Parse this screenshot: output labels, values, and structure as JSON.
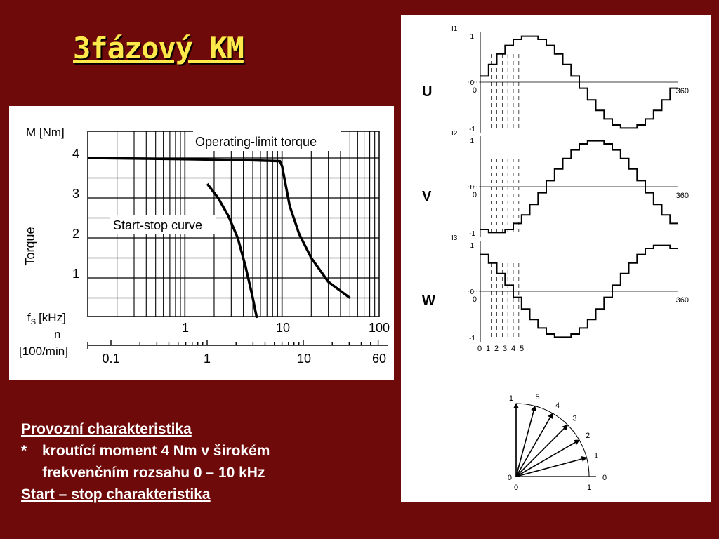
{
  "slide": {
    "title": "3fázový KM",
    "notes": {
      "heading": "Provozní charakteristika",
      "bullet_marker": "*",
      "bullet_line1": "kroutící moment 4 Nm v širokém",
      "bullet_line2": "frekvenčním rozsahu 0 – 10 kHz",
      "footer": "Start – stop charakteristika"
    }
  },
  "torque_chart": {
    "ylabel": "Torque",
    "yunit": "M [Nm]",
    "xunit_f": "f",
    "xunit_f_sub": "S",
    "xunit_f_tail": "[kHz]",
    "xunit_n": "n",
    "xunit_n_tail": "[100/min]",
    "yticks": [
      "4",
      "3",
      "2",
      "1"
    ],
    "fticks": [
      "1",
      "10",
      "100"
    ],
    "nticks": [
      "0.1",
      "1",
      "10",
      "60"
    ],
    "annotation_limit": "Operating-limit torque",
    "annotation_startstop": "Start-stop curve"
  },
  "phase_chart": {
    "phases": [
      {
        "label": "U",
        "ylabel": "I1",
        "ytop": "1",
        "yzero": "0",
        "ybottom": "-1",
        "xzero": "0",
        "xend": "360"
      },
      {
        "label": "V",
        "ylabel": "I2",
        "ytop": "1",
        "yzero": "0",
        "ybottom": "-1",
        "xzero": "0",
        "xend": "360"
      },
      {
        "label": "W",
        "ylabel": "I3",
        "ytop": "1",
        "yzero": "0",
        "ybottom": "-1",
        "xzero": "0",
        "xend": "360"
      }
    ],
    "step_ticks": [
      "0",
      "1",
      "2",
      "3",
      "4",
      "5"
    ]
  },
  "phasor": {
    "y_top": "1",
    "origin_y": "0",
    "origin_x": "0",
    "x_one": "1",
    "x_zero_right": "0",
    "vector_labels": [
      "1",
      "2",
      "3",
      "4",
      "5"
    ]
  },
  "chart_data": [
    {
      "type": "line",
      "title": "",
      "ylabel": "Torque",
      "xlabel": "fS [kHz]",
      "x_scale": "log",
      "xlim": [
        0.1,
        100
      ],
      "ylim": [
        0,
        4.5
      ],
      "grid": true,
      "series": [
        {
          "name": "Operating-limit torque",
          "x": [
            0.1,
            1,
            5,
            9.5,
            10,
            12,
            15,
            20,
            30,
            50
          ],
          "y": [
            4.0,
            3.97,
            3.94,
            3.92,
            3.8,
            2.8,
            2.1,
            1.5,
            0.9,
            0.5
          ]
        },
        {
          "name": "Start-stop curve",
          "x": [
            1.7,
            2.2,
            2.8,
            3.5,
            4.2,
            5.0,
            5.5
          ],
          "y": [
            3.35,
            3.0,
            2.55,
            2.0,
            1.3,
            0.5,
            0.0
          ]
        }
      ]
    },
    {
      "type": "line",
      "title": "",
      "xlabel": "",
      "ylabel": "",
      "xlim": [
        0,
        360
      ],
      "ylim": [
        -1,
        1
      ],
      "series": [
        {
          "name": "I1",
          "shape": "stepped sine",
          "phase_deg": 0
        },
        {
          "name": "I2",
          "shape": "stepped sine",
          "phase_deg": 120
        },
        {
          "name": "I3",
          "shape": "stepped sine",
          "phase_deg": 240
        }
      ]
    }
  ]
}
